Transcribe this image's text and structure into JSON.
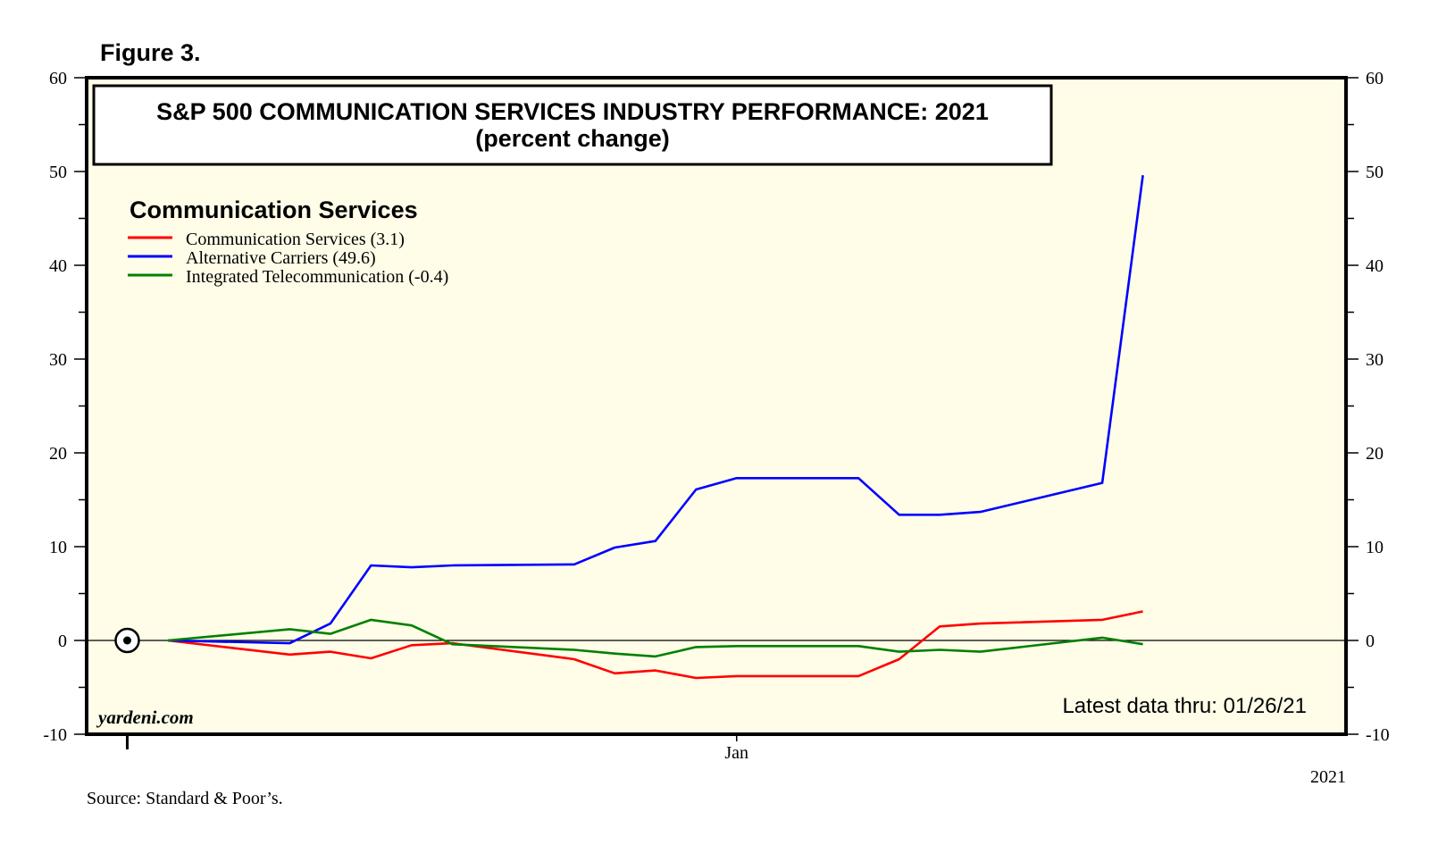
{
  "figure_label": "Figure 3.",
  "source": "Source: Standard & Poor’s.",
  "chart_data": {
    "type": "line",
    "title": "S&P 500 COMMUNICATION SERVICES INDUSTRY PERFORMANCE: 2021",
    "subtitle": "(percent change)",
    "legend_heading": "Communication Services",
    "ylim": [
      -10,
      60
    ],
    "yticks": [
      -10,
      0,
      10,
      20,
      30,
      40,
      50,
      60
    ],
    "xlim": [
      -1,
      30
    ],
    "xtick_labels": [
      {
        "x": 15,
        "label": "Jan"
      }
    ],
    "year_label": "2021",
    "latest_note": "Latest data thru: 01/26/21",
    "brand": "yardeni.com",
    "start_marker": {
      "x": 0,
      "y": 0
    },
    "colors": {
      "background": "#fffde8",
      "Communication Services": "#ff0000",
      "Alternative Carriers": "#0000ff",
      "Integrated Telecommunication": "#008000"
    },
    "series": [
      {
        "name": "Communication Services",
        "legend_label": "Communication Services (3.1)",
        "color": "#ff0000",
        "x": [
          1,
          4,
          5,
          6,
          7,
          8,
          11,
          12,
          13,
          14,
          15,
          18,
          19,
          20,
          21,
          24,
          25
        ],
        "y": [
          0,
          -1.5,
          -1.2,
          -1.9,
          -0.5,
          -0.3,
          -2,
          -3.5,
          -3.2,
          -4,
          -3.8,
          -3.8,
          -2,
          1.5,
          1.8,
          2.2,
          3.1
        ]
      },
      {
        "name": "Alternative Carriers",
        "legend_label": "Alternative Carriers (49.6)",
        "color": "#0000ff",
        "x": [
          1,
          4,
          5,
          6,
          7,
          8,
          11,
          12,
          13,
          14,
          15,
          18,
          19,
          20,
          21,
          24,
          25
        ],
        "y": [
          0,
          -0.3,
          1.8,
          8,
          7.8,
          8,
          8.1,
          9.9,
          10.6,
          16.1,
          17.3,
          17.3,
          13.4,
          13.4,
          13.7,
          16.8,
          49.6
        ]
      },
      {
        "name": "Integrated Telecommunication",
        "legend_label": "Integrated Telecommunication (-0.4)",
        "color": "#008000",
        "x": [
          1,
          4,
          5,
          6,
          7,
          8,
          11,
          12,
          13,
          14,
          15,
          18,
          19,
          20,
          21,
          24,
          25
        ],
        "y": [
          0,
          1.2,
          0.7,
          2.2,
          1.6,
          -0.4,
          -1,
          -1.4,
          -1.7,
          -0.7,
          -0.6,
          -0.6,
          -1.2,
          -1,
          -1.2,
          0.3,
          -0.4
        ]
      }
    ]
  }
}
